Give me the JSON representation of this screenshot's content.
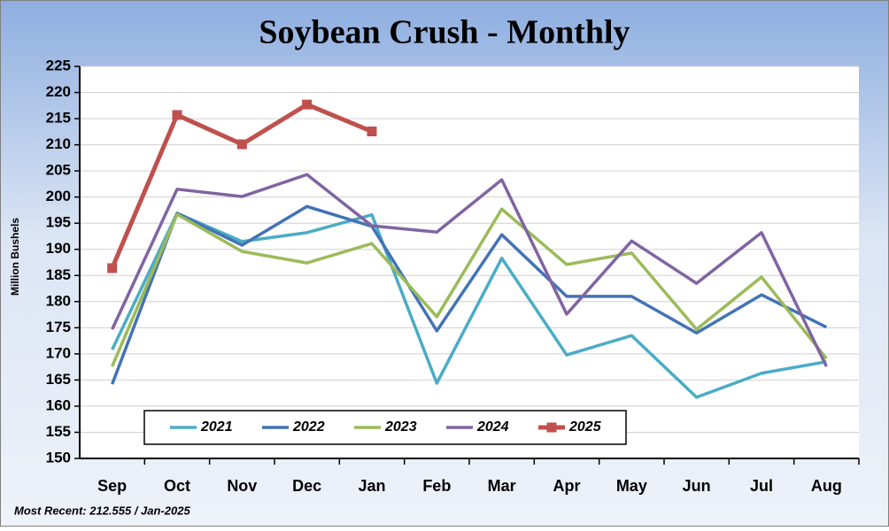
{
  "chart_data": {
    "type": "line",
    "title": "Soybean Crush - Monthly",
    "y_label": "Million Bushels",
    "footnote": "Most Recent: 212.555  / Jan-2025",
    "categories": [
      "Sep",
      "Oct",
      "Nov",
      "Dec",
      "Jan",
      "Feb",
      "Mar",
      "Apr",
      "May",
      "Jun",
      "Jul",
      "Aug"
    ],
    "series": [
      {
        "name": "2021",
        "color": "#4bacc6",
        "values": [
          170.8,
          196.9,
          191.5,
          193.2,
          196.6,
          164.4,
          188.3,
          169.8,
          173.5,
          161.7,
          166.3,
          168.5
        ]
      },
      {
        "name": "2022",
        "color": "#4373b5",
        "values": [
          164.2,
          196.9,
          190.8,
          198.2,
          194.4,
          174.4,
          192.8,
          181.0,
          181.0,
          174.0,
          181.3,
          175.1
        ]
      },
      {
        "name": "2023",
        "color": "#9bbb59",
        "values": [
          167.6,
          196.7,
          189.6,
          187.4,
          191.1,
          177.1,
          197.7,
          187.1,
          189.3,
          174.7,
          184.7,
          169.1
        ]
      },
      {
        "name": "2024",
        "color": "#8064a2",
        "values": [
          174.7,
          201.5,
          200.1,
          204.3,
          194.5,
          193.3,
          203.3,
          177.6,
          191.6,
          183.5,
          193.2,
          167.6
        ]
      },
      {
        "name": "2025",
        "color": "#c0504d",
        "marker": "square",
        "values": [
          186.4,
          215.7,
          210.1,
          217.7,
          212.555,
          null,
          null,
          null,
          null,
          null,
          null,
          null
        ]
      }
    ],
    "ylim": [
      150,
      225
    ],
    "yticks": [
      150,
      155,
      160,
      165,
      170,
      175,
      180,
      185,
      190,
      195,
      200,
      205,
      210,
      215,
      220,
      225
    ],
    "grid": true
  }
}
